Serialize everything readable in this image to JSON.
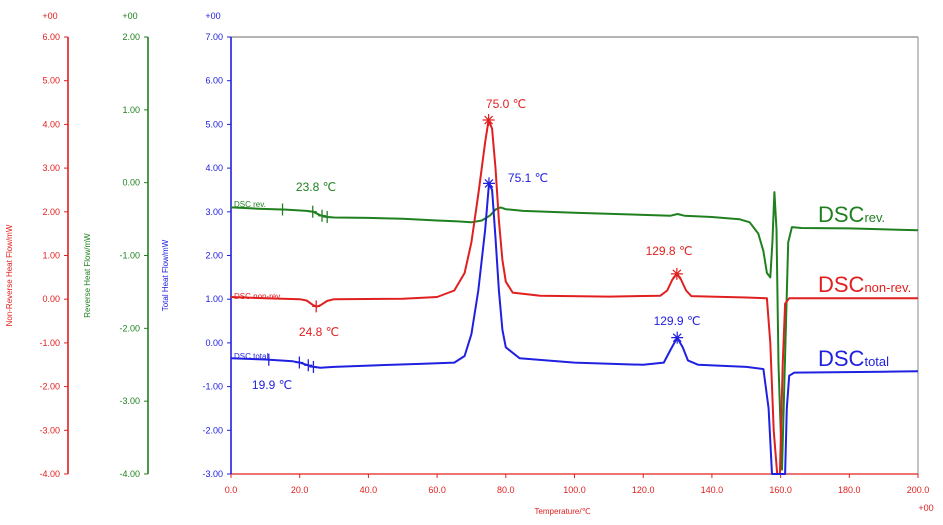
{
  "chart_data": {
    "type": "line",
    "title": "",
    "xlabel": "Temperature/℃",
    "xlim": [
      0,
      200
    ],
    "xticks": [
      "0.0",
      "20.0",
      "40.0",
      "60.0",
      "80.0",
      "100.0",
      "120.0",
      "140.0",
      "160.0",
      "180.0",
      "200.0"
    ],
    "x_exp": "+00",
    "axes": [
      {
        "id": "nonrev",
        "label": "Non-Reverse Heat Flow/mW",
        "color": "#e02020",
        "ylim": [
          -4,
          6
        ],
        "exp": "+00",
        "ticks": [
          "6.00",
          "5.00",
          "4.00",
          "3.00",
          "2.00",
          "1.00",
          "0.00",
          "-1.00",
          "-2.00",
          "-3.00",
          "-4.00"
        ]
      },
      {
        "id": "rev",
        "label": "Reverse Heat Flow/mW",
        "color": "#208020",
        "ylim": [
          -4,
          2
        ],
        "exp": "+00",
        "ticks": [
          "2.00",
          "1.00",
          "0.00",
          "-1.00",
          "-2.00",
          "-3.00",
          "-4.00"
        ]
      },
      {
        "id": "total",
        "label": "Total Heat Flow/mW",
        "color": "#2020e0",
        "ylim": [
          -3,
          7
        ],
        "exp": "+00",
        "ticks": [
          "7.00",
          "6.00",
          "5.00",
          "4.00",
          "3.00",
          "2.00",
          "1.00",
          "0.00",
          "-1.00",
          "-2.00",
          "-3.00"
        ]
      }
    ],
    "series": [
      {
        "name": "DSC rev.",
        "axis": "total",
        "color": "#208020",
        "points": [
          [
            0,
            3.1
          ],
          [
            8,
            3.07
          ],
          [
            16,
            3.05
          ],
          [
            22,
            3.02
          ],
          [
            24,
            3.0
          ],
          [
            26,
            2.92
          ],
          [
            28,
            2.88
          ],
          [
            30,
            2.87
          ],
          [
            40,
            2.86
          ],
          [
            50,
            2.84
          ],
          [
            60,
            2.8
          ],
          [
            66,
            2.78
          ],
          [
            70,
            2.76
          ],
          [
            73,
            2.8
          ],
          [
            75.5,
            2.92
          ],
          [
            77,
            3.05
          ],
          [
            78.5,
            3.1
          ],
          [
            80,
            3.06
          ],
          [
            85,
            3.02
          ],
          [
            100,
            2.98
          ],
          [
            120,
            2.93
          ],
          [
            128,
            2.91
          ],
          [
            130,
            2.95
          ],
          [
            132,
            2.91
          ],
          [
            140,
            2.88
          ],
          [
            148,
            2.83
          ],
          [
            151,
            2.76
          ],
          [
            153.5,
            2.5
          ],
          [
            155,
            2.1
          ],
          [
            156,
            1.6
          ],
          [
            157,
            1.5
          ],
          [
            157.6,
            2.3
          ],
          [
            158.2,
            3.45
          ],
          [
            158.8,
            2.6
          ],
          [
            159.4,
            -0.5
          ],
          [
            160.4,
            -2.9
          ],
          [
            161.3,
            -0.3
          ],
          [
            162.2,
            2.3
          ],
          [
            163.3,
            2.65
          ],
          [
            166,
            2.63
          ],
          [
            180,
            2.62
          ],
          [
            200,
            2.58
          ]
        ]
      },
      {
        "name": "DSC non-rev.",
        "axis": "total",
        "color": "#e02020",
        "points": [
          [
            0,
            1.05
          ],
          [
            10,
            1.02
          ],
          [
            20,
            1.0
          ],
          [
            22,
            0.97
          ],
          [
            24,
            0.86
          ],
          [
            25,
            0.83
          ],
          [
            26,
            0.86
          ],
          [
            28,
            0.96
          ],
          [
            30,
            1.0
          ],
          [
            50,
            1.01
          ],
          [
            60,
            1.05
          ],
          [
            65,
            1.2
          ],
          [
            68,
            1.6
          ],
          [
            70,
            2.3
          ],
          [
            72,
            3.4
          ],
          [
            74,
            4.6
          ],
          [
            75,
            5.1
          ],
          [
            76,
            4.9
          ],
          [
            77,
            4.0
          ],
          [
            78,
            2.8
          ],
          [
            79,
            1.9
          ],
          [
            80,
            1.4
          ],
          [
            82,
            1.15
          ],
          [
            90,
            1.08
          ],
          [
            110,
            1.06
          ],
          [
            125,
            1.08
          ],
          [
            127,
            1.2
          ],
          [
            128.5,
            1.45
          ],
          [
            129.8,
            1.58
          ],
          [
            131,
            1.45
          ],
          [
            132.5,
            1.2
          ],
          [
            134,
            1.07
          ],
          [
            150,
            1.04
          ],
          [
            156,
            1.02
          ],
          [
            157,
            0.0
          ],
          [
            158,
            -2.0
          ],
          [
            159,
            -3.0
          ],
          [
            159.8,
            -3.0
          ],
          [
            160.6,
            -0.5
          ],
          [
            161.3,
            0.9
          ],
          [
            162.5,
            1.02
          ],
          [
            180,
            1.02
          ],
          [
            200,
            1.02
          ]
        ]
      },
      {
        "name": "DSC total",
        "axis": "total",
        "color": "#2020e0",
        "points": [
          [
            0,
            -0.35
          ],
          [
            10,
            -0.38
          ],
          [
            18,
            -0.42
          ],
          [
            20,
            -0.45
          ],
          [
            22,
            -0.5
          ],
          [
            24,
            -0.55
          ],
          [
            26,
            -0.57
          ],
          [
            30,
            -0.55
          ],
          [
            40,
            -0.52
          ],
          [
            55,
            -0.48
          ],
          [
            65,
            -0.45
          ],
          [
            68,
            -0.3
          ],
          [
            70,
            0.2
          ],
          [
            72,
            1.2
          ],
          [
            74,
            2.6
          ],
          [
            75.1,
            3.65
          ],
          [
            76,
            3.5
          ],
          [
            77,
            2.4
          ],
          [
            78,
            1.2
          ],
          [
            79,
            0.3
          ],
          [
            80,
            -0.1
          ],
          [
            84,
            -0.35
          ],
          [
            100,
            -0.45
          ],
          [
            120,
            -0.5
          ],
          [
            126,
            -0.45
          ],
          [
            128,
            -0.15
          ],
          [
            129.9,
            0.12
          ],
          [
            131.5,
            -0.1
          ],
          [
            133,
            -0.4
          ],
          [
            136,
            -0.5
          ],
          [
            150,
            -0.55
          ],
          [
            155,
            -0.6
          ],
          [
            156.5,
            -1.5
          ],
          [
            157.5,
            -3.0
          ],
          [
            161.3,
            -3.0
          ],
          [
            161.8,
            -1.5
          ],
          [
            162.5,
            -0.75
          ],
          [
            164,
            -0.68
          ],
          [
            190,
            -0.66
          ],
          [
            200,
            -0.65
          ]
        ]
      }
    ],
    "markers": [
      {
        "series": "DSC rev.",
        "x": [
          15,
          23.8,
          26.5,
          28
        ]
      },
      {
        "series": "DSC non-rev.",
        "x": [
          24.8
        ]
      },
      {
        "series": "DSC total",
        "x": [
          11,
          19.9,
          22.5,
          24
        ]
      }
    ],
    "peak_stars": [
      {
        "series": "DSC non-rev.",
        "x": 75.0,
        "y": 5.1
      },
      {
        "series": "DSC total",
        "x": 75.1,
        "y": 3.65
      },
      {
        "series": "DSC non-rev.",
        "x": 129.8,
        "y": 1.58
      },
      {
        "series": "DSC total",
        "x": 129.9,
        "y": 0.12
      }
    ],
    "annotations": [
      {
        "text": "75.0 ℃",
        "color": "#e02020"
      },
      {
        "text": "75.1 ℃",
        "color": "#2020e0"
      },
      {
        "text": "23.8 ℃",
        "color": "#208020"
      },
      {
        "text": "24.8 ℃",
        "color": "#e02020"
      },
      {
        "text": "129.8 ℃",
        "color": "#e02020"
      },
      {
        "text": "129.9 ℃",
        "color": "#2020e0"
      },
      {
        "text": "19.9 ℃",
        "color": "#2020e0"
      }
    ],
    "curve_labels": [
      {
        "text": "DSC rev.",
        "color": "#208020"
      },
      {
        "text": "DSC non-rev.",
        "color": "#e02020"
      },
      {
        "text": "DSC total",
        "color": "#2020e0"
      }
    ],
    "legend_labels": [
      {
        "main": "DSC",
        "sub": "rev.",
        "color": "#208020"
      },
      {
        "main": "DSC",
        "sub": "non-rev.",
        "color": "#e02020"
      },
      {
        "main": "DSC",
        "sub": "total",
        "color": "#2020e0"
      }
    ]
  }
}
